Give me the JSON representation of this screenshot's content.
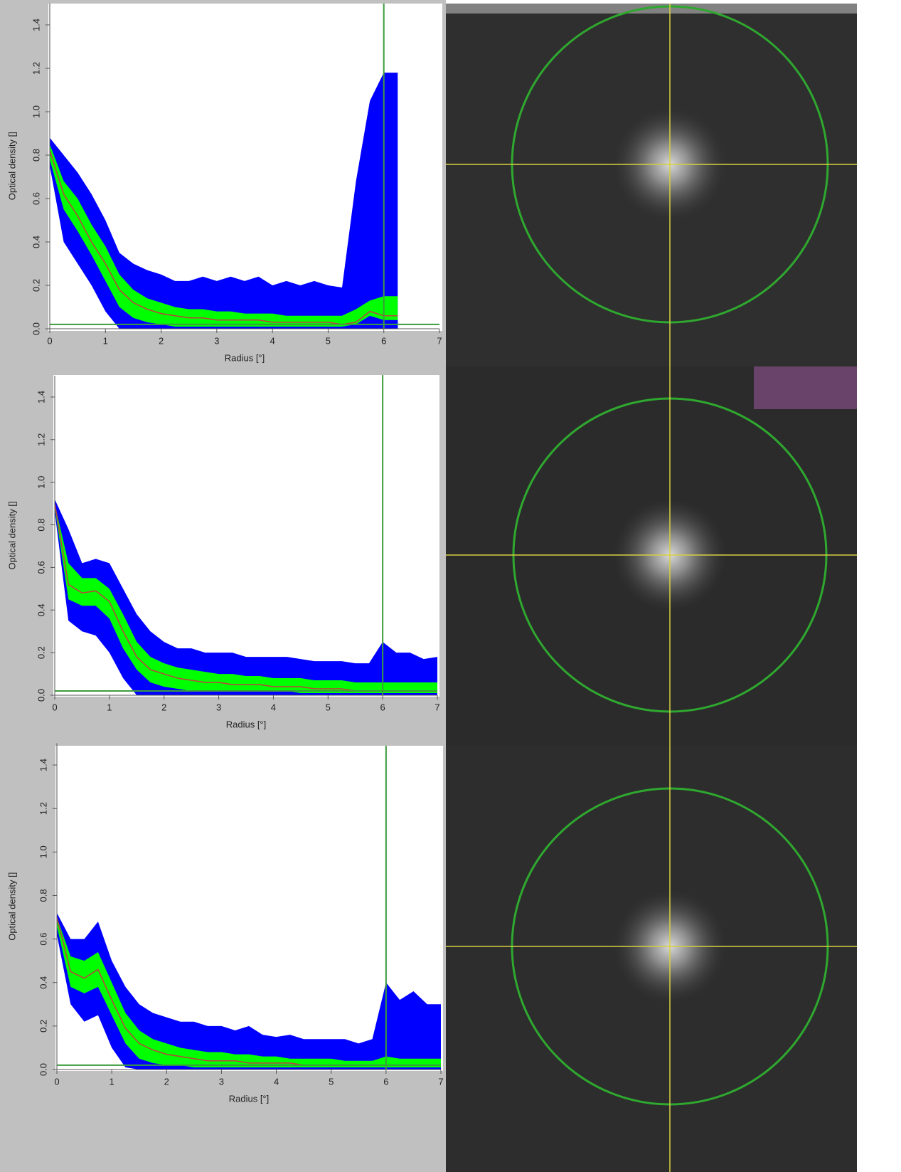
{
  "chart_data": [
    {
      "type": "band",
      "xlabel": "Radius [°]",
      "ylabel": "Optical density []",
      "xlim": [
        0,
        7
      ],
      "ylim": [
        0,
        1.5
      ],
      "xticks": [
        0,
        1,
        2,
        3,
        4,
        5,
        6,
        7
      ],
      "yticks": [
        {
          "value": 0,
          "label": "0.0"
        },
        0.2,
        0.4,
        0.6,
        0.8,
        {
          "value": 1,
          "label": "1.0"
        },
        1.2,
        1.4
      ],
      "vline": 6,
      "hline": 0.02,
      "line_color": "#3c9c3c",
      "x": [
        0,
        0.25,
        0.5,
        0.75,
        1,
        1.25,
        1.5,
        1.75,
        2,
        2.25,
        2.5,
        2.75,
        3,
        3.25,
        3.5,
        3.75,
        4,
        4.25,
        4.5,
        4.75,
        5,
        5.25,
        5.5,
        5.75,
        6,
        6.25
      ],
      "series": [
        {
          "color": "#0000ff",
          "values": [
            0.88,
            0.8,
            0.72,
            0.62,
            0.5,
            0.35,
            0.3,
            0.27,
            0.25,
            0.22,
            0.22,
            0.24,
            0.22,
            0.24,
            0.22,
            0.24,
            0.2,
            0.22,
            0.2,
            0.22,
            0.2,
            0.19,
            0.68,
            1.05,
            1.18,
            1.18
          ]
        },
        {
          "color": "#00ff00",
          "values": [
            0.85,
            0.68,
            0.6,
            0.48,
            0.38,
            0.25,
            0.18,
            0.14,
            0.12,
            0.1,
            0.09,
            0.09,
            0.08,
            0.08,
            0.07,
            0.07,
            0.07,
            0.06,
            0.06,
            0.06,
            0.06,
            0.06,
            0.09,
            0.13,
            0.15,
            0.15
          ]
        },
        {
          "color": "#0000ff",
          "values": [
            0.78,
            0.55,
            0.45,
            0.34,
            0.22,
            0.1,
            0.05,
            0.03,
            0.02,
            0.01,
            0.01,
            0.01,
            0.01,
            0.01,
            0.01,
            0.01,
            0.01,
            0.01,
            0.01,
            0.01,
            0.01,
            0.01,
            0.02,
            0.06,
            0.04,
            0.04
          ]
        },
        {
          "color": "#ffffff",
          "values": [
            0.75,
            0.4,
            0.3,
            0.2,
            0.08,
            0,
            0,
            0,
            0,
            0,
            0,
            0,
            0,
            0,
            0,
            0,
            0,
            0,
            0,
            0,
            0,
            0,
            0,
            0,
            0,
            0
          ]
        },
        {
          "color": "#c04040",
          "values": [
            0.82,
            0.62,
            0.52,
            0.4,
            0.3,
            0.18,
            0.12,
            0.09,
            0.07,
            0.06,
            0.05,
            0.05,
            0.04,
            0.04,
            0.04,
            0.04,
            0.03,
            0.03,
            0.03,
            0.03,
            0.03,
            0.02,
            0.03,
            0.08,
            0.06,
            0.06
          ]
        }
      ]
    },
    {
      "type": "band",
      "xlabel": "Radius [°]",
      "ylabel": "Optical density []",
      "xlim": [
        0,
        7
      ],
      "ylim": [
        0,
        1.5
      ],
      "xticks": [
        0,
        1,
        2,
        3,
        4,
        5,
        6,
        7
      ],
      "yticks": [
        {
          "value": 0,
          "label": "0.0"
        },
        0.2,
        0.4,
        0.6,
        0.8,
        {
          "value": 1,
          "label": "1.0"
        },
        1.2,
        1.4
      ],
      "vline": 6,
      "hline": 0.02,
      "line_color": "#3c9c3c",
      "x": [
        0,
        0.25,
        0.5,
        0.75,
        1,
        1.25,
        1.5,
        1.75,
        2,
        2.25,
        2.5,
        2.75,
        3,
        3.25,
        3.5,
        3.75,
        4,
        4.25,
        4.5,
        4.75,
        5,
        5.25,
        5.5,
        5.75,
        6,
        6.25,
        6.5,
        6.75,
        7
      ],
      "series": [
        {
          "color": "#0000ff",
          "values": [
            0.92,
            0.78,
            0.62,
            0.64,
            0.62,
            0.5,
            0.38,
            0.3,
            0.25,
            0.22,
            0.22,
            0.2,
            0.2,
            0.2,
            0.18,
            0.18,
            0.18,
            0.18,
            0.17,
            0.16,
            0.16,
            0.16,
            0.15,
            0.15,
            0.25,
            0.2,
            0.2,
            0.17,
            0.18
          ]
        },
        {
          "color": "#00ff00",
          "values": [
            0.9,
            0.62,
            0.55,
            0.55,
            0.5,
            0.38,
            0.25,
            0.18,
            0.15,
            0.13,
            0.12,
            0.11,
            0.1,
            0.1,
            0.09,
            0.09,
            0.08,
            0.08,
            0.08,
            0.07,
            0.07,
            0.07,
            0.06,
            0.06,
            0.06,
            0.06,
            0.06,
            0.06,
            0.06
          ]
        },
        {
          "color": "#0000ff",
          "values": [
            0.88,
            0.45,
            0.42,
            0.42,
            0.36,
            0.22,
            0.12,
            0.06,
            0.04,
            0.03,
            0.02,
            0.02,
            0.02,
            0.02,
            0.02,
            0.02,
            0.02,
            0.02,
            0.01,
            0.01,
            0.01,
            0.01,
            0.01,
            0.01,
            0.01,
            0.01,
            0.01,
            0.01,
            0.01
          ]
        },
        {
          "color": "#ffffff",
          "values": [
            0.86,
            0.35,
            0.3,
            0.28,
            0.2,
            0.08,
            0,
            0,
            0,
            0,
            0,
            0,
            0,
            0,
            0,
            0,
            0,
            0,
            0,
            0,
            0,
            0,
            0,
            0,
            0,
            0,
            0,
            0,
            0
          ]
        },
        {
          "color": "#c04040",
          "values": [
            0.9,
            0.52,
            0.48,
            0.49,
            0.44,
            0.3,
            0.18,
            0.12,
            0.1,
            0.08,
            0.07,
            0.06,
            0.06,
            0.05,
            0.05,
            0.05,
            0.04,
            0.04,
            0.04,
            0.03,
            0.03,
            0.03,
            0.02,
            0.02,
            0.02,
            0.02,
            null,
            null,
            null
          ]
        }
      ]
    },
    {
      "type": "band",
      "xlabel": "Radius [°]",
      "ylabel": "Optical density []",
      "xlim": [
        0,
        7
      ],
      "ylim": [
        0,
        1.5
      ],
      "xticks": [
        0,
        1,
        2,
        3,
        4,
        5,
        6,
        7
      ],
      "yticks": [
        {
          "value": 0,
          "label": "0.0"
        },
        0.2,
        0.4,
        0.6,
        0.8,
        {
          "value": 1,
          "label": "1.0"
        },
        1.2,
        1.4
      ],
      "vline": 6,
      "hline": 0.02,
      "line_color": "#3c9c3c",
      "x": [
        0,
        0.25,
        0.5,
        0.75,
        1,
        1.25,
        1.5,
        1.75,
        2,
        2.25,
        2.5,
        2.75,
        3,
        3.25,
        3.5,
        3.75,
        4,
        4.25,
        4.5,
        4.75,
        5,
        5.25,
        5.5,
        5.75,
        6,
        6.25,
        6.5,
        6.75,
        7
      ],
      "series": [
        {
          "color": "#0000ff",
          "values": [
            0.72,
            0.6,
            0.6,
            0.68,
            0.5,
            0.38,
            0.3,
            0.26,
            0.24,
            0.22,
            0.22,
            0.2,
            0.2,
            0.18,
            0.2,
            0.16,
            0.15,
            0.16,
            0.14,
            0.14,
            0.14,
            0.14,
            0.12,
            0.14,
            0.4,
            0.32,
            0.36,
            0.3,
            0.3
          ]
        },
        {
          "color": "#00ff00",
          "values": [
            0.7,
            0.52,
            0.5,
            0.54,
            0.4,
            0.26,
            0.18,
            0.14,
            0.12,
            0.1,
            0.09,
            0.08,
            0.08,
            0.07,
            0.07,
            0.06,
            0.06,
            0.05,
            0.05,
            0.05,
            0.05,
            0.04,
            0.04,
            0.04,
            0.06,
            0.05,
            0.05,
            0.05,
            0.05
          ]
        },
        {
          "color": "#0000ff",
          "values": [
            0.66,
            0.38,
            0.35,
            0.38,
            0.25,
            0.12,
            0.05,
            0.03,
            0.02,
            0.02,
            0.01,
            0.01,
            0.01,
            0.01,
            0.01,
            0.01,
            0.01,
            0.01,
            0.01,
            0.01,
            0.01,
            0.01,
            0.01,
            0.01,
            0.01,
            0.01,
            0.01,
            0.01,
            0.01
          ]
        },
        {
          "color": "#ffffff",
          "values": [
            0.62,
            0.3,
            0.22,
            0.25,
            0.1,
            0.01,
            0,
            0,
            0,
            0,
            0,
            0,
            0,
            0,
            0,
            0,
            0,
            0,
            0,
            0,
            0,
            0,
            0,
            0,
            0,
            0,
            0,
            0,
            0
          ]
        },
        {
          "color": "#c04040",
          "values": [
            0.7,
            0.45,
            0.42,
            0.46,
            0.32,
            0.19,
            0.12,
            0.09,
            0.07,
            0.06,
            0.05,
            0.04,
            0.04,
            0.04,
            0.03,
            0.03,
            0.03,
            0.03,
            0.02,
            0.02,
            0.02,
            0.02,
            null,
            null,
            null,
            null,
            null,
            null,
            null
          ]
        }
      ]
    }
  ]
}
